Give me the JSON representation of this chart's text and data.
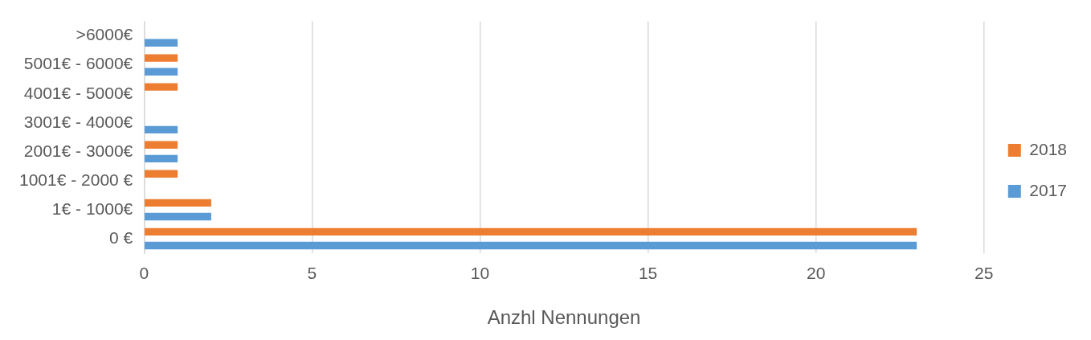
{
  "chart_data": {
    "type": "bar",
    "orientation": "horizontal",
    "xlabel": "Anzhl Nennungen",
    "categories": [
      ">6000€",
      "5001€ - 6000€",
      "4001€ - 5000€",
      "3001€ - 4000€",
      "2001€ - 3000€",
      "1001€ - 2000 €",
      "1€ - 1000€",
      "0 €"
    ],
    "series": [
      {
        "name": "2018",
        "color": "#ed7d31",
        "values": [
          0,
          1,
          1,
          0,
          1,
          1,
          2,
          23
        ]
      },
      {
        "name": "2017",
        "color": "#5b9bd5",
        "values": [
          1,
          1,
          0,
          1,
          1,
          0,
          2,
          23
        ]
      }
    ],
    "xlim": [
      0,
      25
    ],
    "xticks": [
      0,
      5,
      10,
      15,
      20,
      25
    ],
    "grid": "x",
    "legend": "right"
  }
}
